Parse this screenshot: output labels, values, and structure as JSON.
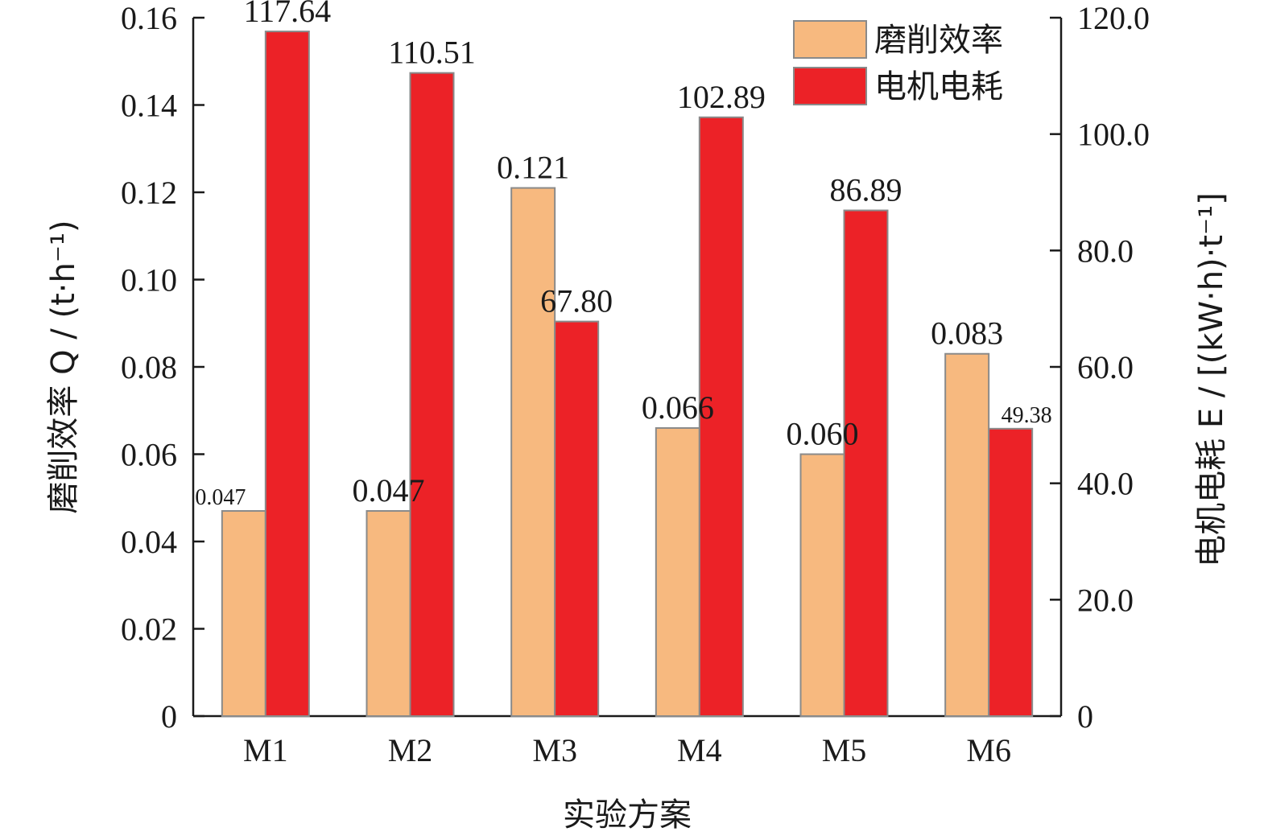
{
  "chart_data": {
    "type": "bar",
    "categories": [
      "M1",
      "M2",
      "M3",
      "M4",
      "M5",
      "M6"
    ],
    "series": [
      {
        "name": "磨削效率",
        "axis": "left",
        "color": "#F7B97F",
        "values": [
          0.047,
          0.047,
          0.121,
          0.066,
          0.06,
          0.083
        ],
        "labels": [
          "0.047",
          "0.047",
          "0.121",
          "0.066",
          "0.060",
          "0.083"
        ]
      },
      {
        "name": "电机电耗",
        "axis": "right",
        "color": "#EC2227",
        "values": [
          117.64,
          110.51,
          67.8,
          102.89,
          86.89,
          49.38
        ],
        "labels": [
          "117.64",
          "110.51",
          "67.80",
          "102.89",
          "86.89",
          "49.38"
        ]
      }
    ],
    "xlabel": "实验方案",
    "ylabel_left": "磨削效率 Q / (t·h⁻¹)",
    "ylabel_right": "电机电耗 E / [(kW·h)·t⁻¹]",
    "ylim_left": [
      0,
      0.16
    ],
    "ylim_right": [
      0,
      120
    ],
    "left_ticks": [
      "0",
      "0.02",
      "0.04",
      "0.06",
      "0.08",
      "0.10",
      "0.12",
      "0.14",
      "0.16"
    ],
    "right_ticks": [
      "0",
      "20.0",
      "40.0",
      "60.0",
      "80.0",
      "100.0",
      "120.0"
    ],
    "grid": false,
    "legend_position": "top-right"
  }
}
